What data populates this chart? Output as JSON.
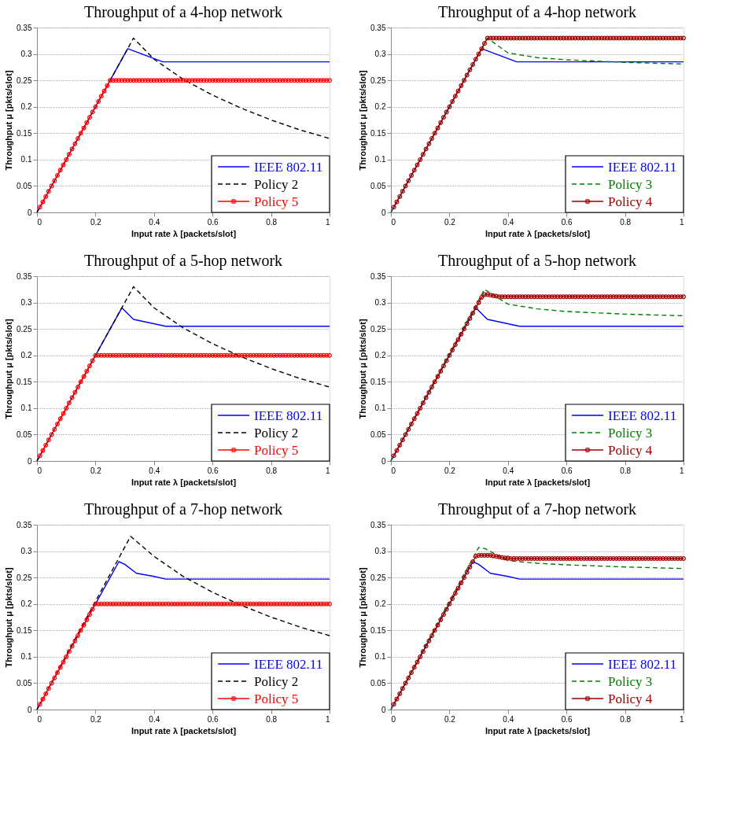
{
  "chart_data": [
    {
      "type": "line",
      "title": "Throughput of a 4-hop network",
      "xlabel": "Input rate λ [packets/slot]",
      "ylabel": "Throughput μ [pkts/slot]",
      "xlim": [
        0,
        1
      ],
      "ylim": [
        0,
        0.35
      ],
      "xticks": [
        0,
        0.2,
        0.4,
        0.6,
        0.8,
        1
      ],
      "yticks": [
        0,
        0.05,
        0.1,
        0.15,
        0.2,
        0.25,
        0.3,
        0.35
      ],
      "grid": "y",
      "legend": "bottom right",
      "x": [
        0.01,
        0.02,
        0.03,
        0.04,
        0.05,
        0.06,
        0.07,
        0.08,
        0.09,
        0.1,
        0.11,
        0.12,
        0.13,
        0.14,
        0.15,
        0.16,
        0.17,
        0.18,
        0.19,
        0.2,
        0.21,
        0.22,
        0.23,
        0.24,
        0.25,
        0.26,
        0.27,
        0.28,
        0.29,
        0.3,
        0.31,
        0.32,
        0.33,
        0.34,
        0.35,
        0.36,
        0.37,
        0.38,
        0.39,
        0.4,
        0.41,
        0.42,
        0.43,
        0.44,
        0.45,
        0.46,
        0.47,
        0.48,
        0.49,
        0.5,
        0.51,
        0.52,
        0.53,
        0.54,
        0.55,
        0.56,
        0.57,
        0.58,
        0.59,
        0.6,
        0.61,
        0.62,
        0.63,
        0.64,
        0.65,
        0.66,
        0.67,
        0.68,
        0.69,
        0.7,
        0.71,
        0.72,
        0.73,
        0.74,
        0.75,
        0.76,
        0.77,
        0.78,
        0.79,
        0.8,
        0.81,
        0.82,
        0.83,
        0.84,
        0.85,
        0.86,
        0.87,
        0.88,
        0.89,
        0.9,
        0.91,
        0.92,
        0.93,
        0.94,
        0.95,
        0.96,
        0.97,
        0.98,
        0.99,
        1
      ],
      "series": [
        {
          "name": "IEEE 802.11",
          "color": "#0000ff",
          "line_style": "solid",
          "marker": "none",
          "x": [
            0,
            0.31,
            0.43,
            1
          ],
          "values": [
            0,
            0.31,
            0.285,
            0.285
          ]
        },
        {
          "name": "Policy 2",
          "color": "#000000",
          "line_style": "dashed",
          "marker": "none",
          "x": [
            0,
            0.33,
            0.4,
            0.5,
            0.6,
            0.7,
            0.8,
            0.9,
            1
          ],
          "values": [
            0,
            0.33,
            0.29,
            0.252,
            0.222,
            0.197,
            0.175,
            0.156,
            0.14
          ]
        },
        {
          "name": "Policy 5",
          "color": "#ff0000",
          "line_style": "solid",
          "marker": "circle",
          "values": [
            0.01,
            0.02,
            0.03,
            0.04,
            0.05,
            0.06,
            0.07,
            0.08,
            0.09,
            0.1,
            0.11,
            0.12,
            0.13,
            0.14,
            0.15,
            0.16,
            0.17,
            0.18,
            0.19,
            0.2,
            0.21,
            0.22,
            0.23,
            0.24,
            0.25,
            0.25,
            0.25,
            0.25,
            0.25,
            0.25,
            0.25,
            0.25,
            0.25,
            0.25,
            0.25,
            0.25,
            0.25,
            0.25,
            0.25,
            0.25,
            0.25,
            0.25,
            0.25,
            0.25,
            0.25,
            0.25,
            0.25,
            0.25,
            0.25,
            0.25,
            0.25,
            0.25,
            0.25,
            0.25,
            0.25,
            0.25,
            0.25,
            0.25,
            0.25,
            0.25,
            0.25,
            0.25,
            0.25,
            0.25,
            0.25,
            0.25,
            0.25,
            0.25,
            0.25,
            0.25,
            0.25,
            0.25,
            0.25,
            0.25,
            0.25,
            0.25,
            0.25,
            0.25,
            0.25,
            0.25,
            0.25,
            0.25,
            0.25,
            0.25,
            0.25,
            0.25,
            0.25,
            0.25,
            0.25,
            0.25,
            0.25,
            0.25,
            0.25,
            0.25,
            0.25,
            0.25,
            0.25,
            0.25,
            0.25,
            0.25
          ]
        }
      ]
    },
    {
      "type": "line",
      "title": "Throughput of a 4-hop network",
      "xlabel": "Input rate λ [packets/slot]",
      "ylabel": "Throughput μ [pkts/slot]",
      "xlim": [
        0,
        1
      ],
      "ylim": [
        0,
        0.35
      ],
      "xticks": [
        0,
        0.2,
        0.4,
        0.6,
        0.8,
        1
      ],
      "yticks": [
        0,
        0.05,
        0.1,
        0.15,
        0.2,
        0.25,
        0.3,
        0.35
      ],
      "grid": "y",
      "legend": "bottom right",
      "x": [
        0.01,
        0.02,
        0.03,
        0.04,
        0.05,
        0.06,
        0.07,
        0.08,
        0.09,
        0.1,
        0.11,
        0.12,
        0.13,
        0.14,
        0.15,
        0.16,
        0.17,
        0.18,
        0.19,
        0.2,
        0.21,
        0.22,
        0.23,
        0.24,
        0.25,
        0.26,
        0.27,
        0.28,
        0.29,
        0.3,
        0.31,
        0.32,
        0.33,
        0.34,
        0.35,
        0.36,
        0.37,
        0.38,
        0.39,
        0.4,
        0.41,
        0.42,
        0.43,
        0.44,
        0.45,
        0.46,
        0.47,
        0.48,
        0.49,
        0.5,
        0.51,
        0.52,
        0.53,
        0.54,
        0.55,
        0.56,
        0.57,
        0.58,
        0.59,
        0.6,
        0.61,
        0.62,
        0.63,
        0.64,
        0.65,
        0.66,
        0.67,
        0.68,
        0.69,
        0.7,
        0.71,
        0.72,
        0.73,
        0.74,
        0.75,
        0.76,
        0.77,
        0.78,
        0.79,
        0.8,
        0.81,
        0.82,
        0.83,
        0.84,
        0.85,
        0.86,
        0.87,
        0.88,
        0.89,
        0.9,
        0.91,
        0.92,
        0.93,
        0.94,
        0.95,
        0.96,
        0.97,
        0.98,
        0.99,
        1
      ],
      "series": [
        {
          "name": "IEEE 802.11",
          "color": "#0000ff",
          "line_style": "solid",
          "marker": "none",
          "x": [
            0,
            0.31,
            0.43,
            1
          ],
          "values": [
            0,
            0.31,
            0.285,
            0.285
          ]
        },
        {
          "name": "Policy 3",
          "color": "#008000",
          "line_style": "dashed",
          "marker": "none",
          "x": [
            0,
            0.33,
            0.4,
            0.5,
            0.6,
            0.8,
            1
          ],
          "values": [
            0,
            0.33,
            0.302,
            0.293,
            0.289,
            0.284,
            0.281
          ]
        },
        {
          "name": "Policy 4",
          "color": "#a00000",
          "line_style": "solid",
          "marker": "circle",
          "values": [
            0.01,
            0.02,
            0.03,
            0.04,
            0.05,
            0.06,
            0.07,
            0.08,
            0.09,
            0.1,
            0.11,
            0.12,
            0.13,
            0.14,
            0.15,
            0.16,
            0.17,
            0.18,
            0.19,
            0.2,
            0.21,
            0.22,
            0.23,
            0.24,
            0.25,
            0.26,
            0.27,
            0.28,
            0.29,
            0.3,
            0.31,
            0.32,
            0.33,
            0.33,
            0.33,
            0.33,
            0.33,
            0.33,
            0.33,
            0.33,
            0.33,
            0.33,
            0.33,
            0.33,
            0.33,
            0.33,
            0.33,
            0.33,
            0.33,
            0.33,
            0.33,
            0.33,
            0.33,
            0.33,
            0.33,
            0.33,
            0.33,
            0.33,
            0.33,
            0.33,
            0.33,
            0.33,
            0.33,
            0.33,
            0.33,
            0.33,
            0.33,
            0.33,
            0.33,
            0.33,
            0.33,
            0.33,
            0.33,
            0.33,
            0.33,
            0.33,
            0.33,
            0.33,
            0.33,
            0.33,
            0.33,
            0.33,
            0.33,
            0.33,
            0.33,
            0.33,
            0.33,
            0.33,
            0.33,
            0.33,
            0.33,
            0.33,
            0.33,
            0.33,
            0.33,
            0.33,
            0.33,
            0.33,
            0.33,
            0.33
          ]
        }
      ]
    },
    {
      "type": "line",
      "title": "Throughput of a 5-hop network",
      "xlabel": "Input rate λ [packets/slot]",
      "ylabel": "Throughput μ [pkts/slot]",
      "xlim": [
        0,
        1
      ],
      "ylim": [
        0,
        0.35
      ],
      "xticks": [
        0,
        0.2,
        0.4,
        0.6,
        0.8,
        1
      ],
      "yticks": [
        0,
        0.05,
        0.1,
        0.15,
        0.2,
        0.25,
        0.3,
        0.35
      ],
      "grid": "y",
      "legend": "bottom right",
      "x": [
        0.01,
        0.02,
        0.03,
        0.04,
        0.05,
        0.06,
        0.07,
        0.08,
        0.09,
        0.1,
        0.11,
        0.12,
        0.13,
        0.14,
        0.15,
        0.16,
        0.17,
        0.18,
        0.19,
        0.2,
        0.21,
        0.22,
        0.23,
        0.24,
        0.25,
        0.26,
        0.27,
        0.28,
        0.29,
        0.3,
        0.31,
        0.32,
        0.33,
        0.34,
        0.35,
        0.36,
        0.37,
        0.38,
        0.39,
        0.4,
        0.41,
        0.42,
        0.43,
        0.44,
        0.45,
        0.46,
        0.47,
        0.48,
        0.49,
        0.5,
        0.51,
        0.52,
        0.53,
        0.54,
        0.55,
        0.56,
        0.57,
        0.58,
        0.59,
        0.6,
        0.61,
        0.62,
        0.63,
        0.64,
        0.65,
        0.66,
        0.67,
        0.68,
        0.69,
        0.7,
        0.71,
        0.72,
        0.73,
        0.74,
        0.75,
        0.76,
        0.77,
        0.78,
        0.79,
        0.8,
        0.81,
        0.82,
        0.83,
        0.84,
        0.85,
        0.86,
        0.87,
        0.88,
        0.89,
        0.9,
        0.91,
        0.92,
        0.93,
        0.94,
        0.95,
        0.96,
        0.97,
        0.98,
        0.99,
        1
      ],
      "series": [
        {
          "name": "IEEE 802.11",
          "color": "#0000ff",
          "line_style": "solid",
          "marker": "none",
          "x": [
            0,
            0.29,
            0.33,
            0.44,
            1
          ],
          "values": [
            0,
            0.29,
            0.268,
            0.255,
            0.255
          ]
        },
        {
          "name": "Policy 2",
          "color": "#000000",
          "line_style": "dashed",
          "marker": "none",
          "x": [
            0,
            0.33,
            0.4,
            0.5,
            0.6,
            0.7,
            0.8,
            0.9,
            1
          ],
          "values": [
            0,
            0.33,
            0.29,
            0.252,
            0.222,
            0.197,
            0.175,
            0.156,
            0.14
          ]
        },
        {
          "name": "Policy 5",
          "color": "#ff0000",
          "line_style": "solid",
          "marker": "circle",
          "values": [
            0.01,
            0.02,
            0.03,
            0.04,
            0.05,
            0.06,
            0.07,
            0.08,
            0.09,
            0.1,
            0.11,
            0.12,
            0.13,
            0.14,
            0.15,
            0.16,
            0.17,
            0.18,
            0.19,
            0.2,
            0.2,
            0.2,
            0.2,
            0.2,
            0.2,
            0.2,
            0.2,
            0.2,
            0.2,
            0.2,
            0.2,
            0.2,
            0.2,
            0.2,
            0.2,
            0.2,
            0.2,
            0.2,
            0.2,
            0.2,
            0.2,
            0.2,
            0.2,
            0.2,
            0.2,
            0.2,
            0.2,
            0.2,
            0.2,
            0.2,
            0.2,
            0.2,
            0.2,
            0.2,
            0.2,
            0.2,
            0.2,
            0.2,
            0.2,
            0.2,
            0.2,
            0.2,
            0.2,
            0.2,
            0.2,
            0.2,
            0.2,
            0.2,
            0.2,
            0.2,
            0.2,
            0.2,
            0.2,
            0.2,
            0.2,
            0.2,
            0.2,
            0.2,
            0.2,
            0.2,
            0.2,
            0.2,
            0.2,
            0.2,
            0.2,
            0.2,
            0.2,
            0.2,
            0.2,
            0.2,
            0.2,
            0.2,
            0.2,
            0.2,
            0.2,
            0.2,
            0.2,
            0.2,
            0.2,
            0.2
          ]
        }
      ]
    },
    {
      "type": "line",
      "title": "Throughput of a 5-hop network",
      "xlabel": "Input rate λ [packets/slot]",
      "ylabel": "Throughput μ [pkts/slot]",
      "xlim": [
        0,
        1
      ],
      "ylim": [
        0,
        0.35
      ],
      "xticks": [
        0,
        0.2,
        0.4,
        0.6,
        0.8,
        1
      ],
      "yticks": [
        0,
        0.05,
        0.1,
        0.15,
        0.2,
        0.25,
        0.3,
        0.35
      ],
      "grid": "y",
      "legend": "bottom right",
      "x": [
        0.01,
        0.02,
        0.03,
        0.04,
        0.05,
        0.06,
        0.07,
        0.08,
        0.09,
        0.1,
        0.11,
        0.12,
        0.13,
        0.14,
        0.15,
        0.16,
        0.17,
        0.18,
        0.19,
        0.2,
        0.21,
        0.22,
        0.23,
        0.24,
        0.25,
        0.26,
        0.27,
        0.28,
        0.29,
        0.3,
        0.31,
        0.32,
        0.33,
        0.34,
        0.35,
        0.36,
        0.37,
        0.38,
        0.39,
        0.4,
        0.41,
        0.42,
        0.43,
        0.44,
        0.45,
        0.46,
        0.47,
        0.48,
        0.49,
        0.5,
        0.51,
        0.52,
        0.53,
        0.54,
        0.55,
        0.56,
        0.57,
        0.58,
        0.59,
        0.6,
        0.61,
        0.62,
        0.63,
        0.64,
        0.65,
        0.66,
        0.67,
        0.68,
        0.69,
        0.7,
        0.71,
        0.72,
        0.73,
        0.74,
        0.75,
        0.76,
        0.77,
        0.78,
        0.79,
        0.8,
        0.81,
        0.82,
        0.83,
        0.84,
        0.85,
        0.86,
        0.87,
        0.88,
        0.89,
        0.9,
        0.91,
        0.92,
        0.93,
        0.94,
        0.95,
        0.96,
        0.97,
        0.98,
        0.99,
        1
      ],
      "series": [
        {
          "name": "IEEE 802.11",
          "color": "#0000ff",
          "line_style": "solid",
          "marker": "none",
          "x": [
            0,
            0.29,
            0.33,
            0.44,
            1
          ],
          "values": [
            0,
            0.29,
            0.268,
            0.255,
            0.255
          ]
        },
        {
          "name": "Policy 3",
          "color": "#008000",
          "line_style": "dashed",
          "marker": "none",
          "x": [
            0,
            0.32,
            0.4,
            0.5,
            0.6,
            0.8,
            1
          ],
          "values": [
            0,
            0.325,
            0.297,
            0.288,
            0.283,
            0.278,
            0.275
          ]
        },
        {
          "name": "Policy 4",
          "color": "#a00000",
          "line_style": "solid",
          "marker": "circle",
          "values": [
            0.01,
            0.02,
            0.03,
            0.04,
            0.05,
            0.06,
            0.07,
            0.08,
            0.09,
            0.1,
            0.11,
            0.12,
            0.13,
            0.14,
            0.15,
            0.16,
            0.17,
            0.18,
            0.19,
            0.2,
            0.21,
            0.22,
            0.23,
            0.24,
            0.25,
            0.26,
            0.27,
            0.28,
            0.29,
            0.3,
            0.31,
            0.315,
            0.315,
            0.314,
            0.313,
            0.312,
            0.311,
            0.311,
            0.311,
            0.311,
            0.311,
            0.311,
            0.311,
            0.311,
            0.311,
            0.311,
            0.311,
            0.311,
            0.311,
            0.311,
            0.311,
            0.311,
            0.311,
            0.311,
            0.311,
            0.311,
            0.311,
            0.311,
            0.311,
            0.311,
            0.311,
            0.311,
            0.311,
            0.311,
            0.311,
            0.311,
            0.311,
            0.311,
            0.311,
            0.311,
            0.311,
            0.311,
            0.311,
            0.311,
            0.311,
            0.311,
            0.311,
            0.311,
            0.311,
            0.311,
            0.311,
            0.311,
            0.311,
            0.311,
            0.311,
            0.311,
            0.311,
            0.311,
            0.311,
            0.311,
            0.311,
            0.311,
            0.311,
            0.311,
            0.311,
            0.311,
            0.311,
            0.311,
            0.311,
            0.311
          ]
        }
      ]
    },
    {
      "type": "line",
      "title": "Throughput of a 7-hop network",
      "xlabel": "Input rate λ [packets/slot]",
      "ylabel": "Throughput μ [pkts/slot]",
      "xlim": [
        0,
        1
      ],
      "ylim": [
        0,
        0.35
      ],
      "xticks": [
        0,
        0.2,
        0.4,
        0.6,
        0.8,
        1
      ],
      "yticks": [
        0,
        0.05,
        0.1,
        0.15,
        0.2,
        0.25,
        0.3,
        0.35
      ],
      "grid": "y",
      "legend": "bottom right",
      "x": [
        0.01,
        0.02,
        0.03,
        0.04,
        0.05,
        0.06,
        0.07,
        0.08,
        0.09,
        0.1,
        0.11,
        0.12,
        0.13,
        0.14,
        0.15,
        0.16,
        0.17,
        0.18,
        0.19,
        0.2,
        0.21,
        0.22,
        0.23,
        0.24,
        0.25,
        0.26,
        0.27,
        0.28,
        0.29,
        0.3,
        0.31,
        0.32,
        0.33,
        0.34,
        0.35,
        0.36,
        0.37,
        0.38,
        0.39,
        0.4,
        0.41,
        0.42,
        0.43,
        0.44,
        0.45,
        0.46,
        0.47,
        0.48,
        0.49,
        0.5,
        0.51,
        0.52,
        0.53,
        0.54,
        0.55,
        0.56,
        0.57,
        0.58,
        0.59,
        0.6,
        0.61,
        0.62,
        0.63,
        0.64,
        0.65,
        0.66,
        0.67,
        0.68,
        0.69,
        0.7,
        0.71,
        0.72,
        0.73,
        0.74,
        0.75,
        0.76,
        0.77,
        0.78,
        0.79,
        0.8,
        0.81,
        0.82,
        0.83,
        0.84,
        0.85,
        0.86,
        0.87,
        0.88,
        0.89,
        0.9,
        0.91,
        0.92,
        0.93,
        0.94,
        0.95,
        0.96,
        0.97,
        0.98,
        0.99,
        1
      ],
      "series": [
        {
          "name": "IEEE 802.11",
          "color": "#0000ff",
          "line_style": "solid",
          "marker": "none",
          "x": [
            0,
            0.28,
            0.3,
            0.34,
            0.4,
            0.44,
            1
          ],
          "values": [
            0,
            0.28,
            0.275,
            0.258,
            0.252,
            0.247,
            0.247
          ]
        },
        {
          "name": "Policy 2",
          "color": "#000000",
          "line_style": "dashed",
          "marker": "none",
          "x": [
            0,
            0.32,
            0.4,
            0.5,
            0.6,
            0.7,
            0.8,
            0.9,
            1
          ],
          "values": [
            0,
            0.328,
            0.29,
            0.252,
            0.222,
            0.197,
            0.175,
            0.156,
            0.14
          ]
        },
        {
          "name": "Policy 5",
          "color": "#ff0000",
          "line_style": "solid",
          "marker": "circle",
          "values": [
            0.01,
            0.02,
            0.03,
            0.04,
            0.05,
            0.06,
            0.07,
            0.08,
            0.09,
            0.1,
            0.11,
            0.12,
            0.13,
            0.14,
            0.15,
            0.16,
            0.17,
            0.18,
            0.19,
            0.2,
            0.2,
            0.2,
            0.2,
            0.2,
            0.2,
            0.2,
            0.2,
            0.2,
            0.2,
            0.2,
            0.2,
            0.2,
            0.2,
            0.2,
            0.2,
            0.2,
            0.2,
            0.2,
            0.2,
            0.2,
            0.2,
            0.2,
            0.2,
            0.2,
            0.2,
            0.2,
            0.2,
            0.2,
            0.2,
            0.2,
            0.2,
            0.2,
            0.2,
            0.2,
            0.2,
            0.2,
            0.2,
            0.2,
            0.2,
            0.2,
            0.2,
            0.2,
            0.2,
            0.2,
            0.2,
            0.2,
            0.2,
            0.2,
            0.2,
            0.2,
            0.2,
            0.2,
            0.2,
            0.2,
            0.2,
            0.2,
            0.2,
            0.2,
            0.2,
            0.2,
            0.2,
            0.2,
            0.2,
            0.2,
            0.2,
            0.2,
            0.2,
            0.2,
            0.2,
            0.2,
            0.2,
            0.2,
            0.2,
            0.2,
            0.2,
            0.2,
            0.2,
            0.2,
            0.2,
            0.2
          ]
        }
      ]
    },
    {
      "type": "line",
      "title": "Throughput of a 7-hop network",
      "xlabel": "Input rate λ [packets/slot]",
      "ylabel": "Throughput μ [pkts/slot]",
      "xlim": [
        0,
        1
      ],
      "ylim": [
        0,
        0.35
      ],
      "xticks": [
        0,
        0.2,
        0.4,
        0.6,
        0.8,
        1
      ],
      "yticks": [
        0,
        0.05,
        0.1,
        0.15,
        0.2,
        0.25,
        0.3,
        0.35
      ],
      "grid": "y",
      "legend": "bottom right",
      "x": [
        0.01,
        0.02,
        0.03,
        0.04,
        0.05,
        0.06,
        0.07,
        0.08,
        0.09,
        0.1,
        0.11,
        0.12,
        0.13,
        0.14,
        0.15,
        0.16,
        0.17,
        0.18,
        0.19,
        0.2,
        0.21,
        0.22,
        0.23,
        0.24,
        0.25,
        0.26,
        0.27,
        0.28,
        0.29,
        0.3,
        0.31,
        0.32,
        0.33,
        0.34,
        0.35,
        0.36,
        0.37,
        0.38,
        0.39,
        0.4,
        0.41,
        0.42,
        0.43,
        0.44,
        0.45,
        0.46,
        0.47,
        0.48,
        0.49,
        0.5,
        0.51,
        0.52,
        0.53,
        0.54,
        0.55,
        0.56,
        0.57,
        0.58,
        0.59,
        0.6,
        0.61,
        0.62,
        0.63,
        0.64,
        0.65,
        0.66,
        0.67,
        0.68,
        0.69,
        0.7,
        0.71,
        0.72,
        0.73,
        0.74,
        0.75,
        0.76,
        0.77,
        0.78,
        0.79,
        0.8,
        0.81,
        0.82,
        0.83,
        0.84,
        0.85,
        0.86,
        0.87,
        0.88,
        0.89,
        0.9,
        0.91,
        0.92,
        0.93,
        0.94,
        0.95,
        0.96,
        0.97,
        0.98,
        0.99,
        1
      ],
      "series": [
        {
          "name": "IEEE 802.11",
          "color": "#0000ff",
          "line_style": "solid",
          "marker": "none",
          "x": [
            0,
            0.28,
            0.3,
            0.34,
            0.4,
            0.44,
            1
          ],
          "values": [
            0,
            0.28,
            0.275,
            0.258,
            0.252,
            0.247,
            0.247
          ]
        },
        {
          "name": "Policy 3",
          "color": "#008000",
          "line_style": "dashed",
          "marker": "none",
          "x": [
            0,
            0.3,
            0.32,
            0.4,
            0.5,
            0.6,
            0.8,
            1
          ],
          "values": [
            0,
            0.307,
            0.305,
            0.282,
            0.277,
            0.274,
            0.27,
            0.267
          ]
        },
        {
          "name": "Policy 4",
          "color": "#a00000",
          "line_style": "solid",
          "marker": "circle",
          "values": [
            0.01,
            0.02,
            0.03,
            0.04,
            0.05,
            0.06,
            0.07,
            0.08,
            0.09,
            0.1,
            0.11,
            0.12,
            0.13,
            0.14,
            0.15,
            0.16,
            0.17,
            0.18,
            0.19,
            0.2,
            0.21,
            0.22,
            0.23,
            0.24,
            0.25,
            0.26,
            0.27,
            0.28,
            0.29,
            0.292,
            0.292,
            0.292,
            0.292,
            0.292,
            0.291,
            0.29,
            0.289,
            0.288,
            0.287,
            0.287,
            0.286,
            0.286,
            0.286,
            0.286,
            0.286,
            0.286,
            0.286,
            0.286,
            0.286,
            0.286,
            0.286,
            0.286,
            0.286,
            0.286,
            0.286,
            0.286,
            0.286,
            0.286,
            0.286,
            0.286,
            0.286,
            0.286,
            0.286,
            0.286,
            0.286,
            0.286,
            0.286,
            0.286,
            0.286,
            0.286,
            0.286,
            0.286,
            0.286,
            0.286,
            0.286,
            0.286,
            0.286,
            0.286,
            0.286,
            0.286,
            0.286,
            0.286,
            0.286,
            0.286,
            0.286,
            0.286,
            0.286,
            0.286,
            0.286,
            0.286,
            0.286,
            0.286,
            0.286,
            0.286,
            0.286,
            0.286,
            0.286,
            0.286,
            0.286,
            0.286
          ]
        }
      ]
    }
  ]
}
